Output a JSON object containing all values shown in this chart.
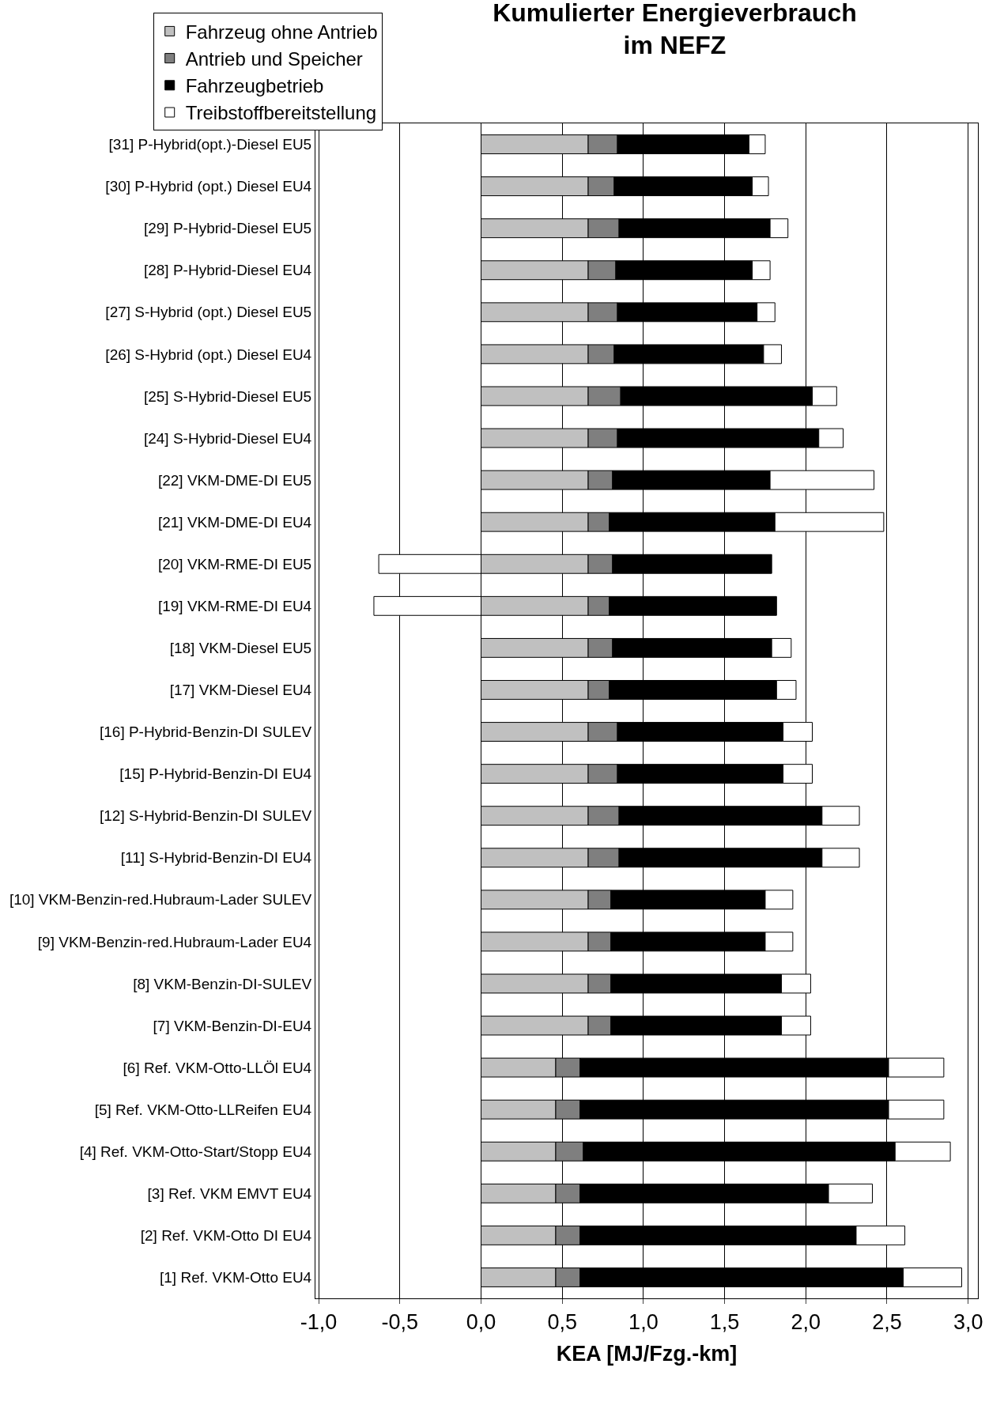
{
  "chart_data": {
    "type": "bar",
    "orientation": "horizontal",
    "stacked": true,
    "title": "Kumulierter Energieverbrauch\nim NEFZ",
    "xlabel": "KEA [MJ/Fzg.-km]",
    "categories": [
      "[31] P-Hybrid(opt.)-Diesel EU5",
      "[30] P-Hybrid (opt.) Diesel EU4",
      "[29] P-Hybrid-Diesel EU5",
      "[28] P-Hybrid-Diesel EU4",
      "[27] S-Hybrid (opt.) Diesel EU5",
      "[26] S-Hybrid (opt.) Diesel EU4",
      "[25] S-Hybrid-Diesel EU5",
      "[24] S-Hybrid-Diesel EU4",
      "[22] VKM-DME-DI EU5",
      "[21] VKM-DME-DI EU4",
      "[20] VKM-RME-DI EU5",
      "[19] VKM-RME-DI EU4",
      "[18] VKM-Diesel EU5",
      "[17] VKM-Diesel EU4",
      "[16] P-Hybrid-Benzin-DI SULEV",
      "[15] P-Hybrid-Benzin-DI EU4",
      "[12] S-Hybrid-Benzin-DI SULEV",
      "[11] S-Hybrid-Benzin-DI EU4",
      "[10] VKM-Benzin-red.Hubraum-Lader SULEV",
      "[9] VKM-Benzin-red.Hubraum-Lader EU4",
      "[8] VKM-Benzin-DI-SULEV",
      "[7] VKM-Benzin-DI-EU4",
      "[6] Ref. VKM-Otto-LLÖl EU4",
      "[5] Ref. VKM-Otto-LLReifen EU4",
      "[4] Ref. VKM-Otto-Start/Stopp EU4",
      "[3] Ref. VKM EMVT EU4",
      "[2] Ref. VKM-Otto DI EU4",
      "[1] Ref. VKM-Otto EU4"
    ],
    "series": [
      {
        "name": "Fahrzeug ohne Antrieb",
        "color": "#c0c0c0",
        "values": [
          0.66,
          0.66,
          0.66,
          0.66,
          0.66,
          0.66,
          0.66,
          0.66,
          0.66,
          0.66,
          0.66,
          0.66,
          0.66,
          0.66,
          0.66,
          0.66,
          0.66,
          0.66,
          0.66,
          0.66,
          0.66,
          0.66,
          0.46,
          0.46,
          0.46,
          0.46,
          0.46,
          0.46
        ]
      },
      {
        "name": "Antrieb und Speicher",
        "color": "#7f7f7f",
        "values": [
          0.18,
          0.16,
          0.19,
          0.17,
          0.18,
          0.16,
          0.2,
          0.18,
          0.15,
          0.13,
          0.15,
          0.13,
          0.15,
          0.13,
          0.18,
          0.18,
          0.19,
          0.19,
          0.14,
          0.14,
          0.14,
          0.14,
          0.15,
          0.15,
          0.17,
          0.15,
          0.15,
          0.15
        ]
      },
      {
        "name": "Fahrzeugbetrieb",
        "color": "#000000",
        "values": [
          0.81,
          0.85,
          0.93,
          0.84,
          0.86,
          0.92,
          1.18,
          1.24,
          0.97,
          1.02,
          0.98,
          1.03,
          0.98,
          1.03,
          1.02,
          1.02,
          1.25,
          1.25,
          0.95,
          0.95,
          1.05,
          1.05,
          1.9,
          1.9,
          1.92,
          1.53,
          1.7,
          1.99
        ]
      },
      {
        "name": "Treibstoffbereitstellung",
        "color": "#ffffff",
        "values": [
          0.1,
          0.1,
          0.11,
          0.11,
          0.11,
          0.11,
          0.15,
          0.15,
          0.64,
          0.67,
          -0.63,
          -0.66,
          0.12,
          0.12,
          0.18,
          0.18,
          0.23,
          0.23,
          0.17,
          0.17,
          0.18,
          0.18,
          0.34,
          0.34,
          0.34,
          0.27,
          0.3,
          0.36
        ]
      }
    ],
    "xlim": [
      -1.02,
      3.06
    ],
    "xticks": [
      {
        "value": -1,
        "label": "-1,0"
      },
      {
        "value": -0.5,
        "label": "-0,5"
      },
      {
        "value": 0,
        "label": "0,0"
      },
      {
        "value": 0.5,
        "label": "0,5"
      },
      {
        "value": 1,
        "label": "1,0"
      },
      {
        "value": 1.5,
        "label": "1,5"
      },
      {
        "value": 2,
        "label": "2,0"
      },
      {
        "value": 2.5,
        "label": "2,5"
      },
      {
        "value": 3,
        "label": "3,0"
      }
    ],
    "grid": "x",
    "legend": "top left"
  }
}
